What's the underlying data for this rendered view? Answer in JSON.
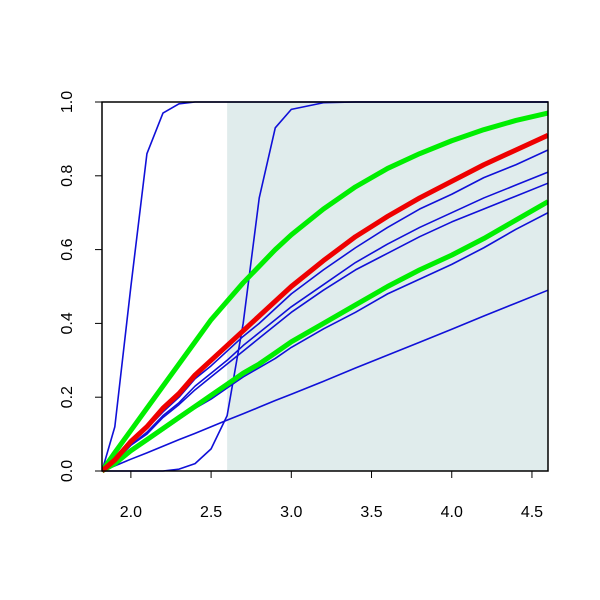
{
  "chart_data": {
    "type": "line",
    "x": [
      1.82,
      1.9,
      2.0,
      2.1,
      2.2,
      2.3,
      2.4,
      2.5,
      2.6,
      2.7,
      2.8,
      2.9,
      3.0,
      3.2,
      3.4,
      3.6,
      3.8,
      4.0,
      4.2,
      4.4,
      4.6
    ],
    "series": [
      {
        "color": "#1010d8",
        "linewidth": 1.6,
        "values": [
          0,
          0.12,
          0.5,
          0.86,
          0.97,
          0.995,
          1,
          1,
          1,
          1,
          1,
          1,
          1,
          1,
          1,
          1,
          1,
          1,
          1,
          1,
          1
        ]
      },
      {
        "color": "#1010d8",
        "linewidth": 1.6,
        "values": [
          0,
          0,
          0,
          0,
          0,
          0.005,
          0.02,
          0.06,
          0.15,
          0.4,
          0.74,
          0.93,
          0.98,
          0.998,
          1,
          1,
          1,
          1,
          1,
          1,
          1
        ]
      },
      {
        "color": "#1010d8",
        "linewidth": 1.6,
        "values": [
          0,
          0.014,
          0.032,
          0.049,
          0.067,
          0.085,
          0.102,
          0.12,
          0.138,
          0.155,
          0.173,
          0.191,
          0.208,
          0.243,
          0.279,
          0.314,
          0.349,
          0.384,
          0.42,
          0.455,
          0.49
        ]
      },
      {
        "color": "#1010d8",
        "linewidth": 1.6,
        "values": [
          0,
          0.03,
          0.075,
          0.115,
          0.16,
          0.2,
          0.25,
          0.285,
          0.325,
          0.365,
          0.4,
          0.44,
          0.48,
          0.545,
          0.605,
          0.66,
          0.71,
          0.75,
          0.795,
          0.83,
          0.87
        ]
      },
      {
        "color": "#1010d8",
        "linewidth": 1.6,
        "values": [
          0,
          0.025,
          0.07,
          0.105,
          0.15,
          0.185,
          0.23,
          0.265,
          0.3,
          0.34,
          0.375,
          0.41,
          0.445,
          0.505,
          0.565,
          0.615,
          0.66,
          0.7,
          0.74,
          0.775,
          0.81
        ]
      },
      {
        "color": "#1010d8",
        "linewidth": 1.6,
        "values": [
          0,
          0.025,
          0.07,
          0.1,
          0.145,
          0.18,
          0.22,
          0.255,
          0.29,
          0.325,
          0.36,
          0.395,
          0.43,
          0.49,
          0.545,
          0.59,
          0.635,
          0.675,
          0.71,
          0.745,
          0.78
        ]
      },
      {
        "color": "#1010d8",
        "linewidth": 1.6,
        "values": [
          0,
          0.02,
          0.055,
          0.08,
          0.11,
          0.14,
          0.17,
          0.195,
          0.225,
          0.255,
          0.28,
          0.305,
          0.335,
          0.385,
          0.43,
          0.48,
          0.52,
          0.56,
          0.605,
          0.655,
          0.7
        ]
      },
      {
        "color": "#00ee00",
        "linewidth": 5,
        "values": [
          0,
          0.05,
          0.11,
          0.17,
          0.23,
          0.29,
          0.35,
          0.41,
          0.46,
          0.51,
          0.555,
          0.6,
          0.64,
          0.71,
          0.77,
          0.82,
          0.86,
          0.895,
          0.925,
          0.95,
          0.97
        ]
      },
      {
        "color": "#00ee00",
        "linewidth": 5,
        "values": [
          0,
          0.02,
          0.055,
          0.085,
          0.115,
          0.145,
          0.175,
          0.205,
          0.235,
          0.265,
          0.29,
          0.32,
          0.35,
          0.4,
          0.45,
          0.5,
          0.545,
          0.585,
          0.63,
          0.68,
          0.73
        ]
      },
      {
        "color": "#ee0000",
        "linewidth": 5,
        "values": [
          0,
          0.03,
          0.08,
          0.12,
          0.17,
          0.21,
          0.26,
          0.3,
          0.34,
          0.38,
          0.42,
          0.46,
          0.5,
          0.57,
          0.635,
          0.69,
          0.74,
          0.785,
          0.83,
          0.87,
          0.91
        ]
      }
    ],
    "shaded_xrange": [
      2.6,
      4.6
    ],
    "shade_color": "#e0ecec",
    "xlim": [
      1.82,
      4.6
    ],
    "ylim": [
      0,
      1
    ],
    "xticks": [
      {
        "value": 2,
        "label": "2.0"
      },
      2.5,
      {
        "value": 3,
        "label": "3.0"
      },
      3.5,
      {
        "value": 4,
        "label": "4.0"
      },
      4.5
    ],
    "yticks": [
      {
        "value": 0,
        "label": "0.0"
      },
      0.2,
      0.4,
      0.6,
      0.8,
      {
        "value": 1,
        "label": "1.0"
      }
    ]
  }
}
